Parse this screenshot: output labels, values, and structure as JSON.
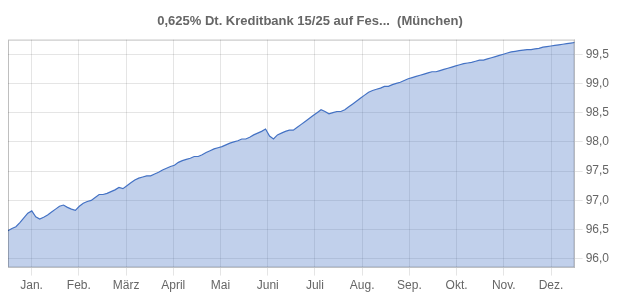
{
  "chart_data": {
    "type": "area",
    "title": "0,625% Dt. Kreditbank 15/25 auf Fes...  (München)",
    "color": "#4472c4",
    "grid": true,
    "xlim": [
      0,
      12
    ],
    "xticks": [
      {
        "value": 0.5,
        "label": "Jan."
      },
      {
        "value": 1.5,
        "label": "Feb."
      },
      {
        "value": 2.5,
        "label": "März"
      },
      {
        "value": 3.5,
        "label": "April"
      },
      {
        "value": 4.5,
        "label": "Mai"
      },
      {
        "value": 5.5,
        "label": "Juni"
      },
      {
        "value": 6.5,
        "label": "Juli"
      },
      {
        "value": 7.5,
        "label": "Aug."
      },
      {
        "value": 8.5,
        "label": "Sep."
      },
      {
        "value": 9.5,
        "label": "Okt."
      },
      {
        "value": 10.5,
        "label": "Nov."
      },
      {
        "value": 11.5,
        "label": "Dez."
      }
    ],
    "ylim": [
      95.85,
      99.75
    ],
    "yticks": [
      {
        "value": 96.0,
        "label": "96,0"
      },
      {
        "value": 96.5,
        "label": "96,5"
      },
      {
        "value": 97.0,
        "label": "97,0"
      },
      {
        "value": 97.5,
        "label": "97,5"
      },
      {
        "value": 98.0,
        "label": "98,0"
      },
      {
        "value": 98.5,
        "label": "98,5"
      },
      {
        "value": 99.0,
        "label": "99,0"
      },
      {
        "value": 99.5,
        "label": "99,5"
      }
    ],
    "x": [
      0,
      0.0839,
      0.1678,
      0.2517,
      0.3357,
      0.4196,
      0.5035,
      0.5874,
      0.6713,
      0.7552,
      0.8392,
      0.9231,
      1.007,
      1.0909,
      1.1748,
      1.2587,
      1.3427,
      1.4266,
      1.5105,
      1.5944,
      1.6783,
      1.7622,
      1.8462,
      1.9301,
      2.014,
      2.0979,
      2.1818,
      2.2657,
      2.3497,
      2.4336,
      2.5175,
      2.6014,
      2.6853,
      2.7692,
      2.8531,
      2.9371,
      3.021,
      3.1049,
      3.1888,
      3.2727,
      3.3566,
      3.4406,
      3.5245,
      3.6084,
      3.6923,
      3.7762,
      3.8601,
      3.9441,
      4.028,
      4.1119,
      4.1958,
      4.2797,
      4.3636,
      4.4476,
      4.5315,
      4.6154,
      4.6993,
      4.7832,
      4.8671,
      4.951,
      5.035,
      5.1189,
      5.2028,
      5.2867,
      5.3706,
      5.4545,
      5.5385,
      5.6224,
      5.7063,
      5.7902,
      5.8741,
      5.958,
      6.042,
      6.1259,
      6.2098,
      6.2937,
      6.3776,
      6.4615,
      6.5455,
      6.6294,
      6.7133,
      6.7972,
      6.8811,
      6.965,
      7.049,
      7.1329,
      7.2168,
      7.3007,
      7.3846,
      7.4685,
      7.5524,
      7.6364,
      7.7203,
      7.8042,
      7.8881,
      7.972,
      8.0559,
      8.1399,
      8.2238,
      8.3077,
      8.3916,
      8.4755,
      8.5594,
      8.6434,
      8.7273,
      8.8112,
      8.8951,
      8.979,
      9.0629,
      9.1469,
      9.2308,
      9.3147,
      9.3986,
      9.4825,
      9.5664,
      9.6503,
      9.7343,
      9.8182,
      9.9021,
      9.986,
      10.0699,
      10.1538,
      10.2378,
      10.3217,
      10.4056,
      10.4895,
      10.5734,
      10.6573,
      10.7413,
      10.8252,
      10.9091,
      10.993,
      11.0769,
      11.1608,
      11.2448,
      11.3287,
      11.4126,
      11.4965,
      11.5804,
      11.6643,
      11.7483,
      11.8322,
      11.9161,
      12
    ],
    "values": [
      96.48,
      96.52,
      96.55,
      96.62,
      96.7,
      96.78,
      96.82,
      96.72,
      96.68,
      96.71,
      96.75,
      96.8,
      96.85,
      96.9,
      96.92,
      96.88,
      96.85,
      96.83,
      96.9,
      96.95,
      96.98,
      97.0,
      97.05,
      97.1,
      97.1,
      97.12,
      97.15,
      97.18,
      97.22,
      97.2,
      97.25,
      97.3,
      97.35,
      97.38,
      97.4,
      97.42,
      97.42,
      97.45,
      97.48,
      97.52,
      97.55,
      97.58,
      97.6,
      97.65,
      97.68,
      97.7,
      97.72,
      97.75,
      97.75,
      97.78,
      97.82,
      97.85,
      97.88,
      97.9,
      97.92,
      97.95,
      97.98,
      98.0,
      98.02,
      98.05,
      98.05,
      98.08,
      98.12,
      98.15,
      98.18,
      98.22,
      98.1,
      98.05,
      98.12,
      98.15,
      98.18,
      98.2,
      98.2,
      98.25,
      98.3,
      98.35,
      98.4,
      98.45,
      98.5,
      98.55,
      98.52,
      98.48,
      98.5,
      98.52,
      98.52,
      98.55,
      98.6,
      98.65,
      98.7,
      98.75,
      98.8,
      98.85,
      98.88,
      98.9,
      98.92,
      98.95,
      98.95,
      98.98,
      99.0,
      99.02,
      99.05,
      99.08,
      99.1,
      99.12,
      99.14,
      99.16,
      99.18,
      99.2,
      99.2,
      99.22,
      99.24,
      99.26,
      99.28,
      99.3,
      99.32,
      99.34,
      99.35,
      99.36,
      99.38,
      99.4,
      99.4,
      99.42,
      99.44,
      99.46,
      99.48,
      99.5,
      99.52,
      99.54,
      99.55,
      99.56,
      99.57,
      99.58,
      99.58,
      99.59,
      99.6,
      99.62,
      99.63,
      99.64,
      99.65,
      99.66,
      99.67,
      99.68,
      99.69,
      99.7
    ]
  }
}
